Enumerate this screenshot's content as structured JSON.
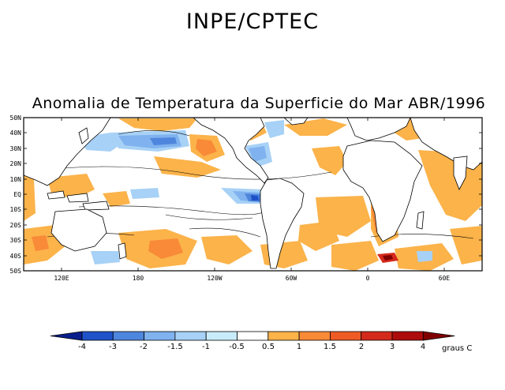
{
  "header": {
    "title": "INPE/CPTEC",
    "subtitle": "Anomalia de Temperatura da Superficie do Mar ABR/1996"
  },
  "map": {
    "lat_labels": [
      "50N",
      "40N",
      "30N",
      "20N",
      "10N",
      "EQ",
      "10S",
      "20S",
      "30S",
      "40S",
      "50S"
    ],
    "lon_labels": [
      "120E",
      "180",
      "120W",
      "60W",
      "0",
      "60E"
    ]
  },
  "colorbar": {
    "levels": [
      "-4",
      "-3",
      "-2",
      "-1.5",
      "-1",
      "-0.5",
      "0.5",
      "1",
      "1.5",
      "2",
      "3",
      "4"
    ],
    "colors": [
      "#0a1f8c",
      "#1f52c8",
      "#4f86dd",
      "#7fb2ee",
      "#a7d1f6",
      "#c9ecfb",
      "#ffffff",
      "#fbb34a",
      "#f98a37",
      "#ef5b25",
      "#d42a1c",
      "#ad0c0c",
      "#800000"
    ],
    "unit_label": "graus C"
  },
  "colors": {
    "land_outline": "#000000",
    "warm": "#fbb34a",
    "cold": "#a7d1f6"
  }
}
